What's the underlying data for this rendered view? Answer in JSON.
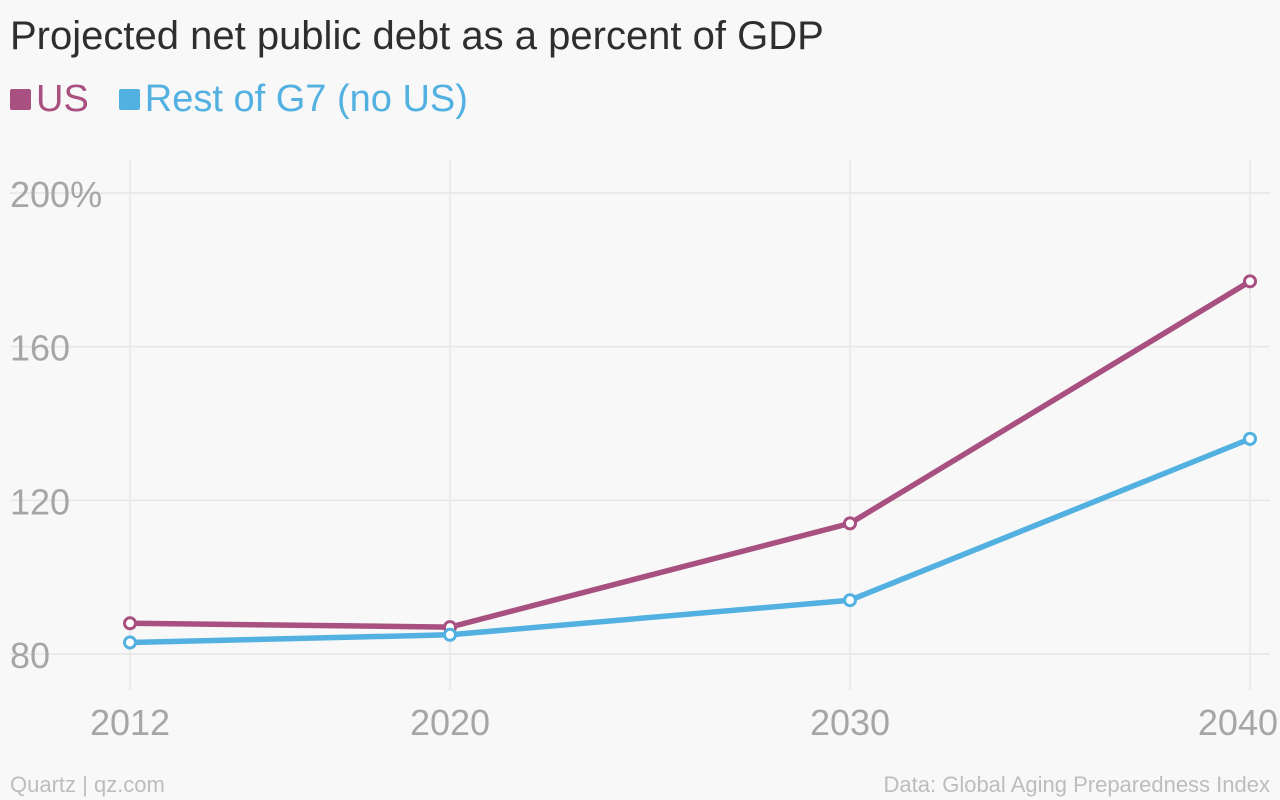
{
  "chart_data": {
    "type": "line",
    "title": "Projected net public debt as a percent of GDP",
    "x": [
      "2012",
      "2020",
      "2030",
      "2040"
    ],
    "series": [
      {
        "name": "US",
        "color": "#a8507f",
        "values": [
          88,
          87,
          114,
          177
        ]
      },
      {
        "name": "Rest of G7 (no US)",
        "color": "#52b1e0",
        "values": [
          83,
          85,
          94,
          136
        ]
      }
    ],
    "yticks": [
      "80",
      "120",
      "160",
      "200%"
    ],
    "ylim": [
      80,
      200
    ],
    "grid": true,
    "legend_position": "top-left",
    "markers": "open-circle"
  },
  "footer": {
    "source": "Data: Global Aging Preparedness Index",
    "credit": "Quartz | qz.com"
  }
}
